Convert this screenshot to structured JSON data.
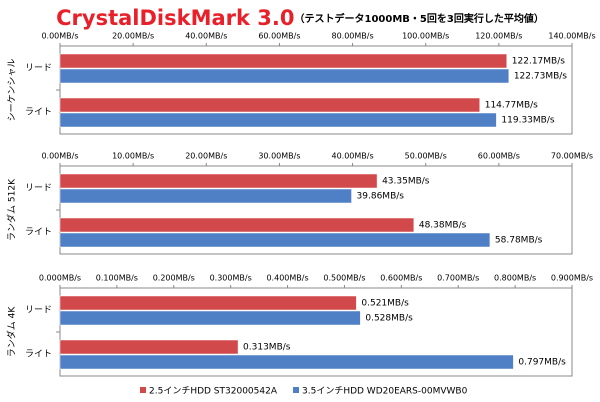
{
  "title": "CrystalDiskMark 3.0",
  "subtitle": "（テストデータ1000MB・5回を3回実行した平均値）",
  "chart_data": [
    {
      "type": "hbar",
      "y_label": "シーケンシャル",
      "categories": [
        "リード",
        "ライト"
      ],
      "series": [
        {
          "name": "2.5インチHDD ST32000542A",
          "color": "#d2494b",
          "values": [
            122.17,
            114.77
          ],
          "value_labels": [
            "122.17MB/s",
            "114.77MB/s"
          ]
        },
        {
          "name": "3.5インチHDD WD20EARS-00MVWB0",
          "color": "#4f7fc4",
          "values": [
            122.73,
            119.33
          ],
          "value_labels": [
            "122.73MB/s",
            "119.33MB/s"
          ]
        }
      ],
      "xlim": [
        0,
        140
      ],
      "xticks": [
        {
          "value": 0,
          "label": "0.00MB/s"
        },
        {
          "value": 20,
          "label": "20.00MB/s"
        },
        {
          "value": 40,
          "label": "40.00MB/s"
        },
        {
          "value": 60,
          "label": "60.00MB/s"
        },
        {
          "value": 80,
          "label": "80.00MB/s"
        },
        {
          "value": 100,
          "label": "100.00MB/s"
        },
        {
          "value": 120,
          "label": "120.00MB/s"
        },
        {
          "value": 140,
          "label": "140.00MB/s"
        }
      ]
    },
    {
      "type": "hbar",
      "y_label": "ランダム 512K",
      "categories": [
        "リード",
        "ライト"
      ],
      "series": [
        {
          "color": "#d2494b",
          "values": [
            43.35,
            48.38
          ],
          "value_labels": [
            "43.35MB/s",
            "48.38MB/s"
          ]
        },
        {
          "color": "#4f7fc4",
          "values": [
            39.86,
            58.78
          ],
          "value_labels": [
            "39.86MB/s",
            "58.78MB/s"
          ]
        }
      ],
      "xlim": [
        0,
        70
      ],
      "xticks": [
        {
          "value": 0,
          "label": "0.00MB/s"
        },
        {
          "value": 10,
          "label": "10.00MB/s"
        },
        {
          "value": 20,
          "label": "20.00MB/s"
        },
        {
          "value": 30,
          "label": "30.00MB/s"
        },
        {
          "value": 40,
          "label": "40.00MB/s"
        },
        {
          "value": 50,
          "label": "50.00MB/s"
        },
        {
          "value": 60,
          "label": "60.00MB/s"
        },
        {
          "value": 70,
          "label": "70.00MB/s"
        }
      ]
    },
    {
      "type": "hbar",
      "y_label": "ランダム 4K",
      "categories": [
        "リード",
        "ライト"
      ],
      "series": [
        {
          "color": "#d2494b",
          "values": [
            0.521,
            0.313
          ],
          "value_labels": [
            "0.521MB/s",
            "0.313MB/s"
          ]
        },
        {
          "color": "#4f7fc4",
          "values": [
            0.528,
            0.797
          ],
          "value_labels": [
            "0.528MB/s",
            "0.797MB/s"
          ]
        }
      ],
      "xlim": [
        0,
        0.9
      ],
      "xticks": [
        {
          "value": 0,
          "label": "0.000MB/s"
        },
        {
          "value": 0.1,
          "label": "0.100MB/s"
        },
        {
          "value": 0.2,
          "label": "0.200MB/s"
        },
        {
          "value": 0.3,
          "label": "0.300MB/s"
        },
        {
          "value": 0.4,
          "label": "0.400MB/s"
        },
        {
          "value": 0.5,
          "label": "0.500MB/s"
        },
        {
          "value": 0.6,
          "label": "0.600MB/s"
        },
        {
          "value": 0.7,
          "label": "0.700MB/s"
        },
        {
          "value": 0.8,
          "label": "0.800MB/s"
        },
        {
          "value": 0.9,
          "label": "0.900MB/s"
        }
      ]
    }
  ]
}
